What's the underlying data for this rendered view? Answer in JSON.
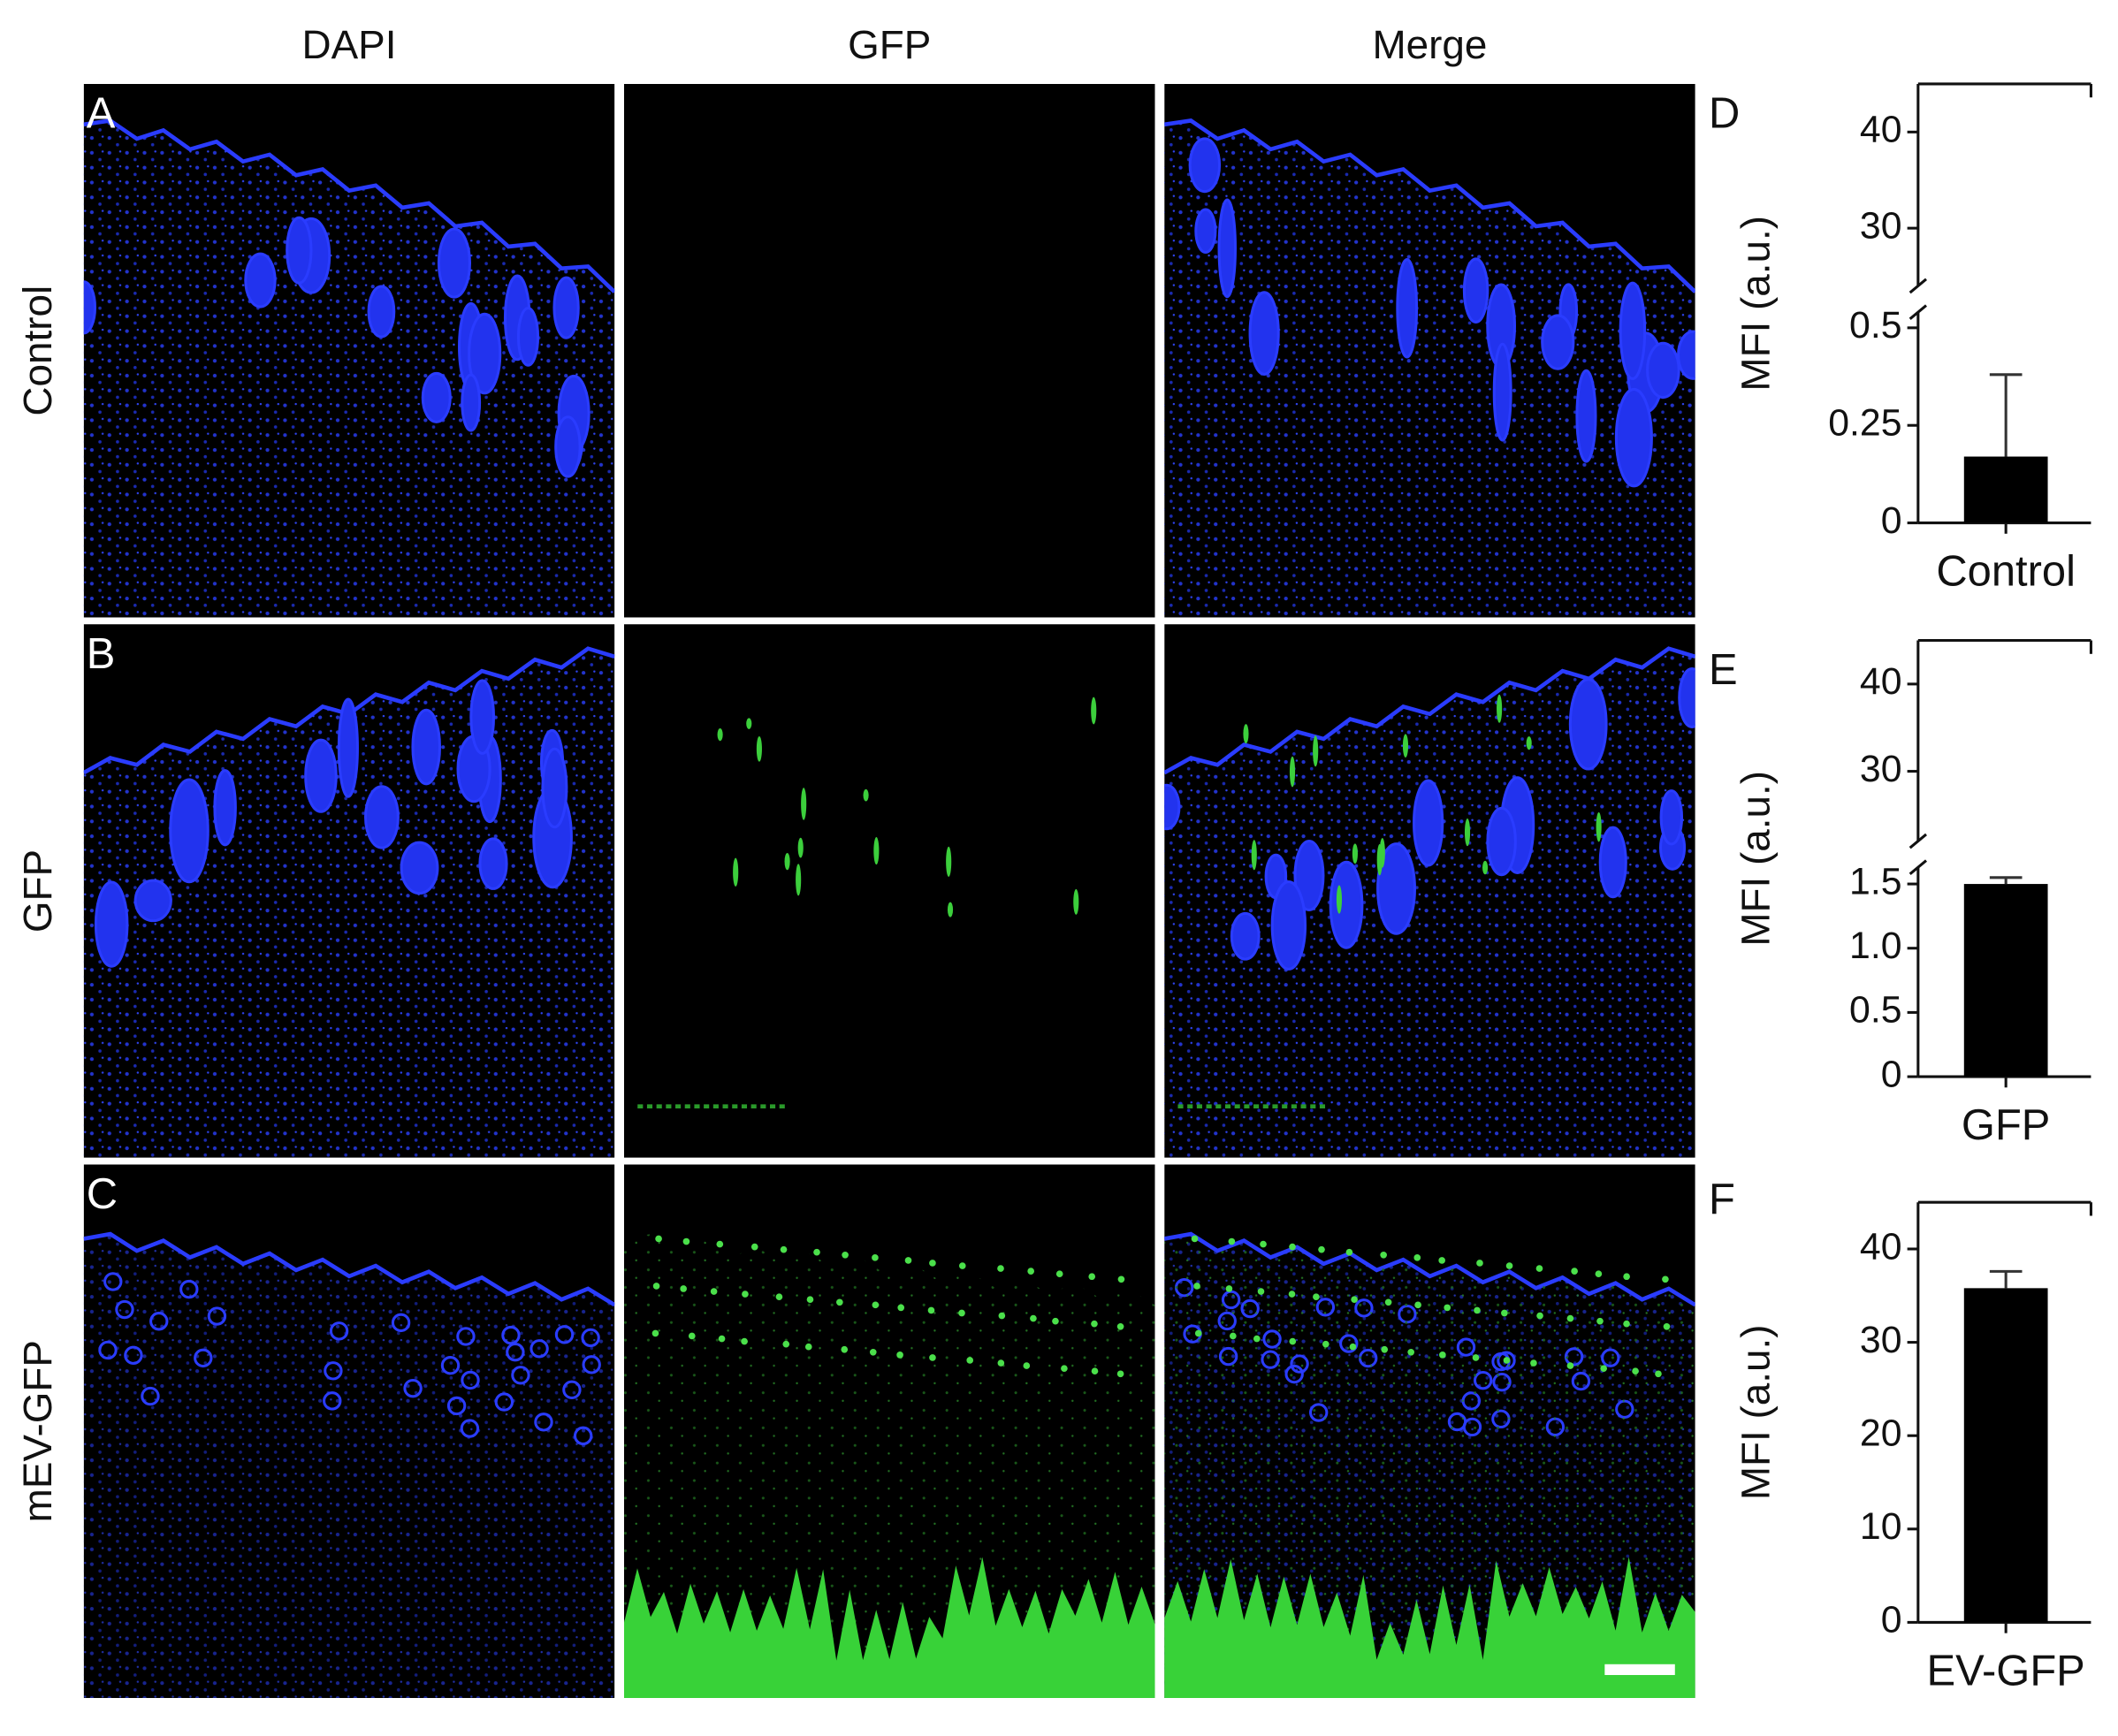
{
  "figure": {
    "columns": [
      "DAPI",
      "GFP",
      "Merge"
    ],
    "rows": [
      "Control",
      "GFP",
      "mEV-GFP"
    ],
    "panel_letters": [
      "A",
      "B",
      "C"
    ]
  },
  "chart_data": [
    {
      "type": "bar",
      "panel": "D",
      "ylabel": "MFI (a.u.)",
      "categories": [
        "Control"
      ],
      "values": [
        0.17
      ],
      "errors": [
        0.21
      ],
      "color": "#000000",
      "y_segments": [
        {
          "ylim": [
            0,
            0.54
          ],
          "yticks": [
            0,
            0.25,
            0.5
          ]
        },
        {
          "ylim": [
            24,
            45
          ],
          "yticks": [
            30,
            40
          ]
        }
      ]
    },
    {
      "type": "bar",
      "panel": "E",
      "ylabel": "MFI (a.u.)",
      "categories": [
        "GFP"
      ],
      "values": [
        1.5
      ],
      "errors": [
        0.05
      ],
      "color": "#000000",
      "y_segments": [
        {
          "ylim": [
            0,
            1.63
          ],
          "yticks": [
            0,
            0.5,
            {
              "value": 1,
              "label": "1.0"
            },
            1.5
          ]
        },
        {
          "ylim": [
            22,
            45
          ],
          "yticks": [
            30,
            40
          ]
        }
      ]
    },
    {
      "type": "bar",
      "panel": "F",
      "ylabel": "MFI (a.u.)",
      "categories": [
        "EV-GFP"
      ],
      "values": [
        35.8
      ],
      "errors": [
        1.8
      ],
      "color": "#000000",
      "ylim": [
        0,
        45
      ],
      "yticks": [
        0,
        10,
        20,
        30,
        40
      ]
    }
  ]
}
